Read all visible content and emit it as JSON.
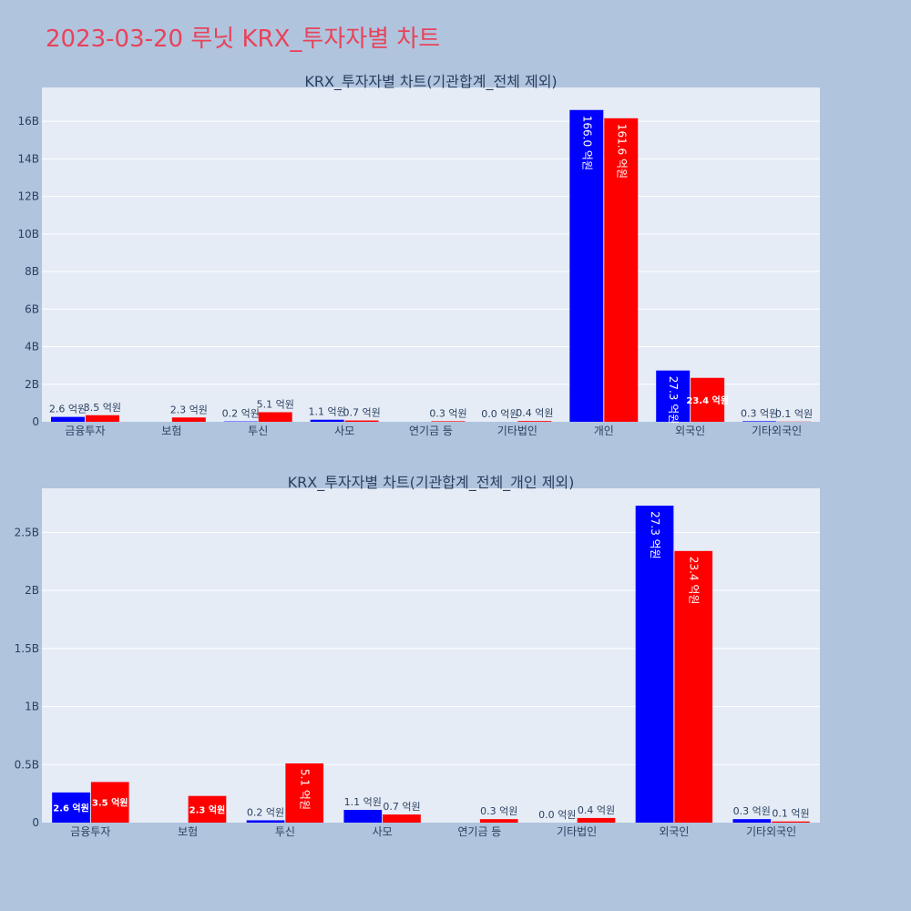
{
  "page": {
    "title": "2023-03-20 루닛 KRX_투자자별 차트",
    "title_color": "#e8435a",
    "background": "#b0c4de",
    "plot_background": "#e5ecf6"
  },
  "chart_data": [
    {
      "type": "bar",
      "title": "KRX_투자자별 차트(기관합계_전체 제외)",
      "categories": [
        "금융투자",
        "보험",
        "투신",
        "사모",
        "연기금 등",
        "기타법인",
        "개인",
        "외국인",
        "기타외국인"
      ],
      "series": [
        {
          "color": "#0000ff",
          "values": [
            260000000,
            0,
            20000000,
            110000000,
            0,
            0,
            16600000000,
            2730000000,
            30000000
          ],
          "labels": [
            "2.6 억원",
            "",
            "0.2 억원",
            "1.1 억원",
            "",
            "0.0 억원",
            "166.0 억원",
            "27.3 억원",
            "0.3 억원"
          ]
        },
        {
          "color": "#ff0000",
          "values": [
            350000000,
            230000000,
            510000000,
            70000000,
            30000000,
            40000000,
            16160000000,
            2340000000,
            10000000
          ],
          "labels": [
            "3.5 억원",
            "2.3 억원",
            "5.1 억원",
            "0.7 억원",
            "0.3 억원",
            "0.4 억원",
            "161.6 억원",
            "23.4 억원",
            "0.1 억원"
          ]
        }
      ],
      "yticks": [
        0,
        2000000000,
        4000000000,
        6000000000,
        8000000000,
        10000000000,
        12000000000,
        14000000000,
        16000000000
      ],
      "ytick_labels": [
        "0",
        "2B",
        "4B",
        "6B",
        "8B",
        "10B",
        "12B",
        "14B",
        "16B"
      ],
      "ylim": [
        0,
        17800000000
      ],
      "grid": true
    },
    {
      "type": "bar",
      "title": "KRX_투자자별 차트(기관합계_전체_개인 제외)",
      "categories": [
        "금융투자",
        "보험",
        "투신",
        "사모",
        "연기금 등",
        "기타법인",
        "외국인",
        "기타외국인"
      ],
      "series": [
        {
          "color": "#0000ff",
          "values": [
            260000000,
            0,
            20000000,
            110000000,
            0,
            0,
            2730000000,
            30000000
          ],
          "labels": [
            "2.6 억원",
            "",
            "0.2 억원",
            "1.1 억원",
            "",
            "0.0 억원",
            "27.3 억원",
            "0.3 억원"
          ]
        },
        {
          "color": "#ff0000",
          "values": [
            350000000,
            230000000,
            510000000,
            70000000,
            30000000,
            40000000,
            2340000000,
            10000000
          ],
          "labels": [
            "3.5 억원",
            "2.3 억원",
            "5.1 억원",
            "0.7 억원",
            "0.3 억원",
            "0.4 억원",
            "23.4 억원",
            "0.1 억원"
          ]
        }
      ],
      "yticks": [
        0,
        500000000,
        1000000000,
        1500000000,
        2000000000,
        2500000000
      ],
      "ytick_labels": [
        "0",
        "0.5B",
        "1B",
        "1.5B",
        "2B",
        "2.5B"
      ],
      "ylim": [
        0,
        2880000000
      ],
      "grid": true
    }
  ]
}
